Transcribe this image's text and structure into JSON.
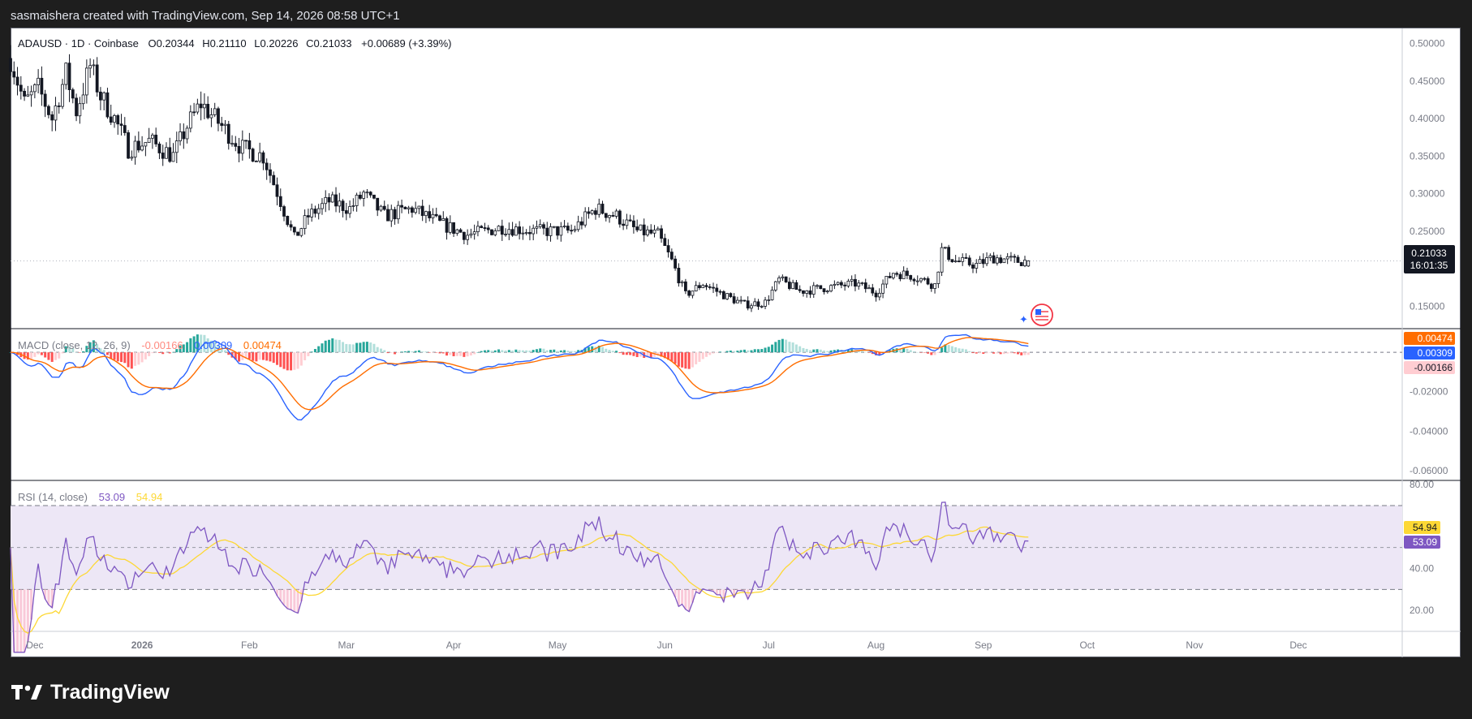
{
  "header": {
    "attribution": "sasmaishera created with TradingView.com, Sep 14, 2026 08:58 UTC+1"
  },
  "footer": {
    "brand": "TradingView"
  },
  "colors": {
    "up": "#131722",
    "down": "#131722",
    "macd_line": "#2962ff",
    "signal_line": "#ff6d00",
    "hist_pos_strong": "#26a69a",
    "hist_pos_weak": "#b2dfdb",
    "hist_neg_strong": "#ff5252",
    "hist_neg_weak": "#ffcdd2",
    "rsi_line": "#7e57c2",
    "rsi_ma": "#fdd835",
    "rsi_band": "#ede7f6",
    "price_tag": "#131722"
  },
  "legend": {
    "symbol": "ADAUSD · 1D · Coinbase",
    "o_label": "O",
    "o_value": "0.20344",
    "h_label": "H",
    "h_value": "0.21110",
    "l_label": "L",
    "l_value": "0.20226",
    "c_label": "C",
    "c_value": "0.21033",
    "change": "+0.00689 (+3.39%)"
  },
  "macd_legend": {
    "title": "MACD (close, 12, 26, 9)",
    "hist": "-0.00166",
    "macd": "0.00309",
    "signal": "0.00474"
  },
  "rsi_legend": {
    "title": "RSI (14, close)",
    "rsi": "53.09",
    "ma": "54.94"
  },
  "price_tag": {
    "value": "0.21033",
    "countdown": "16:01:35"
  },
  "macd_tags": {
    "signal": "0.00474",
    "macd": "0.00309",
    "hist": "-0.00166"
  },
  "rsi_tags": {
    "ma": "54.94",
    "rsi": "53.09"
  },
  "price_axis": [
    "0.50000",
    "0.45000",
    "0.40000",
    "0.35000",
    "0.30000",
    "0.25000",
    "0.15000"
  ],
  "macd_axis": [
    "-0.02000",
    "-0.04000",
    "-0.06000"
  ],
  "rsi_axis": [
    "80.00",
    "40.00",
    "20.00"
  ],
  "time_axis": [
    "Dec",
    "2026",
    "Feb",
    "Mar",
    "Apr",
    "May",
    "Jun",
    "Jul",
    "Aug",
    "Sep",
    "Oct",
    "Nov",
    "Dec"
  ],
  "chart_data": {
    "type": "candlestick",
    "symbol": "ADAUSD",
    "interval": "1D",
    "exchange": "Coinbase",
    "price_range": [
      0.12,
      0.52
    ],
    "trend_anchors": [
      [
        "2025-11-24",
        0.48
      ],
      [
        "2025-11-28",
        0.42
      ],
      [
        "2025-12-02",
        0.44
      ],
      [
        "2025-12-06",
        0.4
      ],
      [
        "2025-12-10",
        0.46
      ],
      [
        "2025-12-13",
        0.41
      ],
      [
        "2025-12-17",
        0.47
      ],
      [
        "2025-12-20",
        0.43
      ],
      [
        "2025-12-24",
        0.4
      ],
      [
        "2025-12-28",
        0.36
      ],
      [
        "2026-01-03",
        0.37
      ],
      [
        "2026-01-10",
        0.35
      ],
      [
        "2026-01-14",
        0.39
      ],
      [
        "2026-01-18",
        0.42
      ],
      [
        "2026-01-24",
        0.39
      ],
      [
        "2026-01-30",
        0.36
      ],
      [
        "2026-02-05",
        0.35
      ],
      [
        "2026-02-10",
        0.29
      ],
      [
        "2026-02-14",
        0.24
      ],
      [
        "2026-02-18",
        0.27
      ],
      [
        "2026-02-24",
        0.29
      ],
      [
        "2026-03-02",
        0.28
      ],
      [
        "2026-03-06",
        0.3
      ],
      [
        "2026-03-12",
        0.27
      ],
      [
        "2026-03-20",
        0.28
      ],
      [
        "2026-03-28",
        0.26
      ],
      [
        "2026-04-05",
        0.245
      ],
      [
        "2026-04-15",
        0.255
      ],
      [
        "2026-04-25",
        0.25
      ],
      [
        "2026-05-05",
        0.25
      ],
      [
        "2026-05-12",
        0.28
      ],
      [
        "2026-05-18",
        0.27
      ],
      [
        "2026-05-24",
        0.25
      ],
      [
        "2026-05-30",
        0.245
      ],
      [
        "2026-06-03",
        0.21
      ],
      [
        "2026-06-07",
        0.165
      ],
      [
        "2026-06-12",
        0.18
      ],
      [
        "2026-06-18",
        0.165
      ],
      [
        "2026-06-24",
        0.152
      ],
      [
        "2026-06-30",
        0.155
      ],
      [
        "2026-07-04",
        0.185
      ],
      [
        "2026-07-10",
        0.17
      ],
      [
        "2026-07-18",
        0.175
      ],
      [
        "2026-07-26",
        0.18
      ],
      [
        "2026-08-01",
        0.168
      ],
      [
        "2026-08-06",
        0.195
      ],
      [
        "2026-08-12",
        0.19
      ],
      [
        "2026-08-18",
        0.178
      ],
      [
        "2026-08-20",
        0.225
      ],
      [
        "2026-08-24",
        0.21
      ],
      [
        "2026-08-30",
        0.205
      ],
      [
        "2026-09-04",
        0.215
      ],
      [
        "2026-09-10",
        0.21
      ],
      [
        "2026-09-14",
        0.21033
      ]
    ],
    "last_bar": {
      "date": "2026-09-14",
      "open": 0.20344,
      "high": 0.2111,
      "low": 0.20226,
      "close": 0.21033,
      "change": 0.00689,
      "change_pct": 3.39
    },
    "macd": {
      "fast": 12,
      "slow": 26,
      "signal": 9,
      "last_macd": 0.00309,
      "last_signal": 0.00474,
      "last_hist": -0.00166,
      "range": [
        -0.065,
        0.012
      ]
    },
    "rsi": {
      "length": 14,
      "last_rsi": 53.09,
      "last_ma": 54.94,
      "range": [
        10,
        82
      ],
      "bands": [
        30,
        50,
        70
      ]
    },
    "x_range": [
      "2025-11-24",
      "2026-12-31"
    ]
  }
}
